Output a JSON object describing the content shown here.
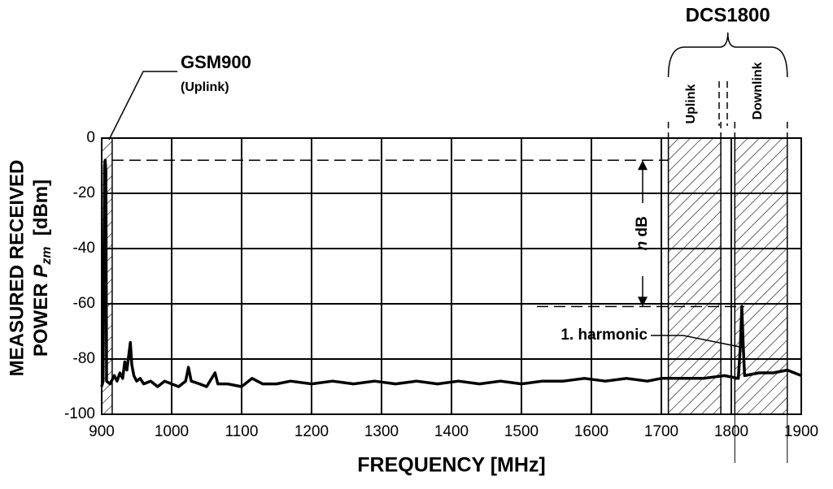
{
  "chart_data": {
    "type": "line",
    "xlabel": "FREQUENCY  [MHz]",
    "ylabel": {
      "line1": "MEASURED RECEIVED",
      "prefix": "POWER",
      "symbol": "P",
      "subscript": "zm",
      "unit": "[dBm]"
    },
    "xlim": [
      900,
      1900
    ],
    "ylim": [
      -100,
      0
    ],
    "xticks": [
      900,
      1000,
      1100,
      1200,
      1300,
      1400,
      1500,
      1600,
      1700,
      1800,
      1900
    ],
    "yticks": [
      0,
      -20,
      -40,
      -60,
      -80,
      -100
    ],
    "grid": true,
    "bands": [
      {
        "range": [
          900,
          915
        ],
        "label": "GSM900",
        "sublabel": "(Uplink)"
      },
      {
        "range": [
          1710,
          1785
        ],
        "label": "Uplink"
      },
      {
        "range": [
          1805,
          1880
        ],
        "label": "Downlink"
      }
    ],
    "group_label": "DCS1800",
    "levels": [
      -8,
      -61
    ],
    "level_label": {
      "italic": "n",
      "text": "dB"
    },
    "peak_label": "1. harmonic",
    "series": [
      {
        "color": "#000000",
        "x": [
          900,
          902,
          904,
          905,
          906,
          907,
          912,
          918,
          922,
          926,
          930,
          933,
          936,
          939,
          941,
          943,
          946,
          950,
          955,
          960,
          970,
          980,
          990,
          1000,
          1010,
          1020,
          1024,
          1028,
          1040,
          1050,
          1062,
          1066,
          1080,
          1100,
          1115,
          1130,
          1150,
          1170,
          1200,
          1230,
          1260,
          1290,
          1320,
          1350,
          1380,
          1410,
          1440,
          1470,
          1500,
          1530,
          1560,
          1590,
          1620,
          1650,
          1680,
          1700,
          1730,
          1760,
          1790,
          1810,
          1813,
          1815,
          1817,
          1819,
          1840,
          1860,
          1880,
          1900
        ],
        "values": [
          -90,
          -88,
          -10,
          -8,
          -12,
          -88,
          -89,
          -86,
          -88,
          -85,
          -87,
          -81,
          -84,
          -78,
          -74,
          -82,
          -86,
          -88,
          -87,
          -89,
          -88,
          -90,
          -88,
          -89,
          -90,
          -88,
          -83,
          -88,
          -89,
          -90,
          -85,
          -89,
          -89,
          -90,
          -87,
          -89,
          -89,
          -88,
          -89,
          -88,
          -89,
          -88,
          -89,
          -88,
          -89,
          -88,
          -89,
          -88,
          -89,
          -88,
          -88,
          -87,
          -88,
          -87,
          -88,
          -87,
          -87,
          -87,
          -86,
          -87,
          -75,
          -61,
          -75,
          -86,
          -85,
          -85,
          -84,
          -86
        ]
      }
    ]
  }
}
